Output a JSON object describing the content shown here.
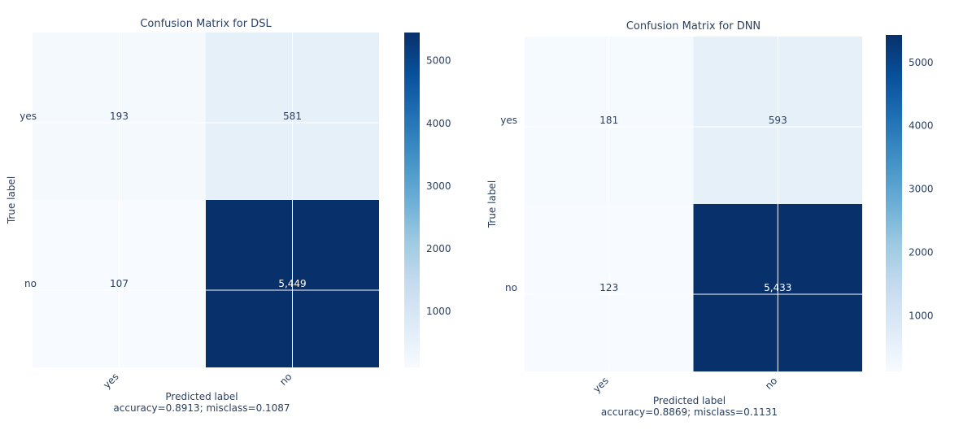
{
  "colors": {
    "scale": [
      "#f7fbff",
      "#deebf7",
      "#c6dbef",
      "#9ecae1",
      "#6baed6",
      "#4292c6",
      "#2171b5",
      "#08519c",
      "#08306b"
    ],
    "text_dark": "#2a3f5f",
    "text_light": "#ffffff"
  },
  "chart_data": [
    {
      "type": "heatmap",
      "title": "Confusion Matrix for DSL",
      "xlabel": "Predicted label",
      "ylabel": "True label",
      "footer": "accuracy=0.8913; misclass=0.1087",
      "x_categories": [
        "yes",
        "no"
      ],
      "y_categories": [
        "yes",
        "no"
      ],
      "values": [
        [
          193,
          581
        ],
        [
          107,
          5449
        ]
      ],
      "cell_labels": [
        [
          "193",
          "581"
        ],
        [
          "107",
          "5,449"
        ]
      ],
      "colorbar": {
        "min": 107,
        "max": 5449,
        "ticks": [
          1000,
          2000,
          3000,
          4000,
          5000
        ]
      }
    },
    {
      "type": "heatmap",
      "title": "Confusion Matrix for DNN",
      "xlabel": "Predicted label",
      "ylabel": "True label",
      "footer": "accuracy=0.8869; misclass=0.1131",
      "x_categories": [
        "yes",
        "no"
      ],
      "y_categories": [
        "yes",
        "no"
      ],
      "values": [
        [
          181,
          593
        ],
        [
          123,
          5433
        ]
      ],
      "cell_labels": [
        [
          "181",
          "593"
        ],
        [
          "123",
          "5,433"
        ]
      ],
      "colorbar": {
        "min": 123,
        "max": 5433,
        "ticks": [
          1000,
          2000,
          3000,
          4000,
          5000
        ]
      }
    }
  ]
}
